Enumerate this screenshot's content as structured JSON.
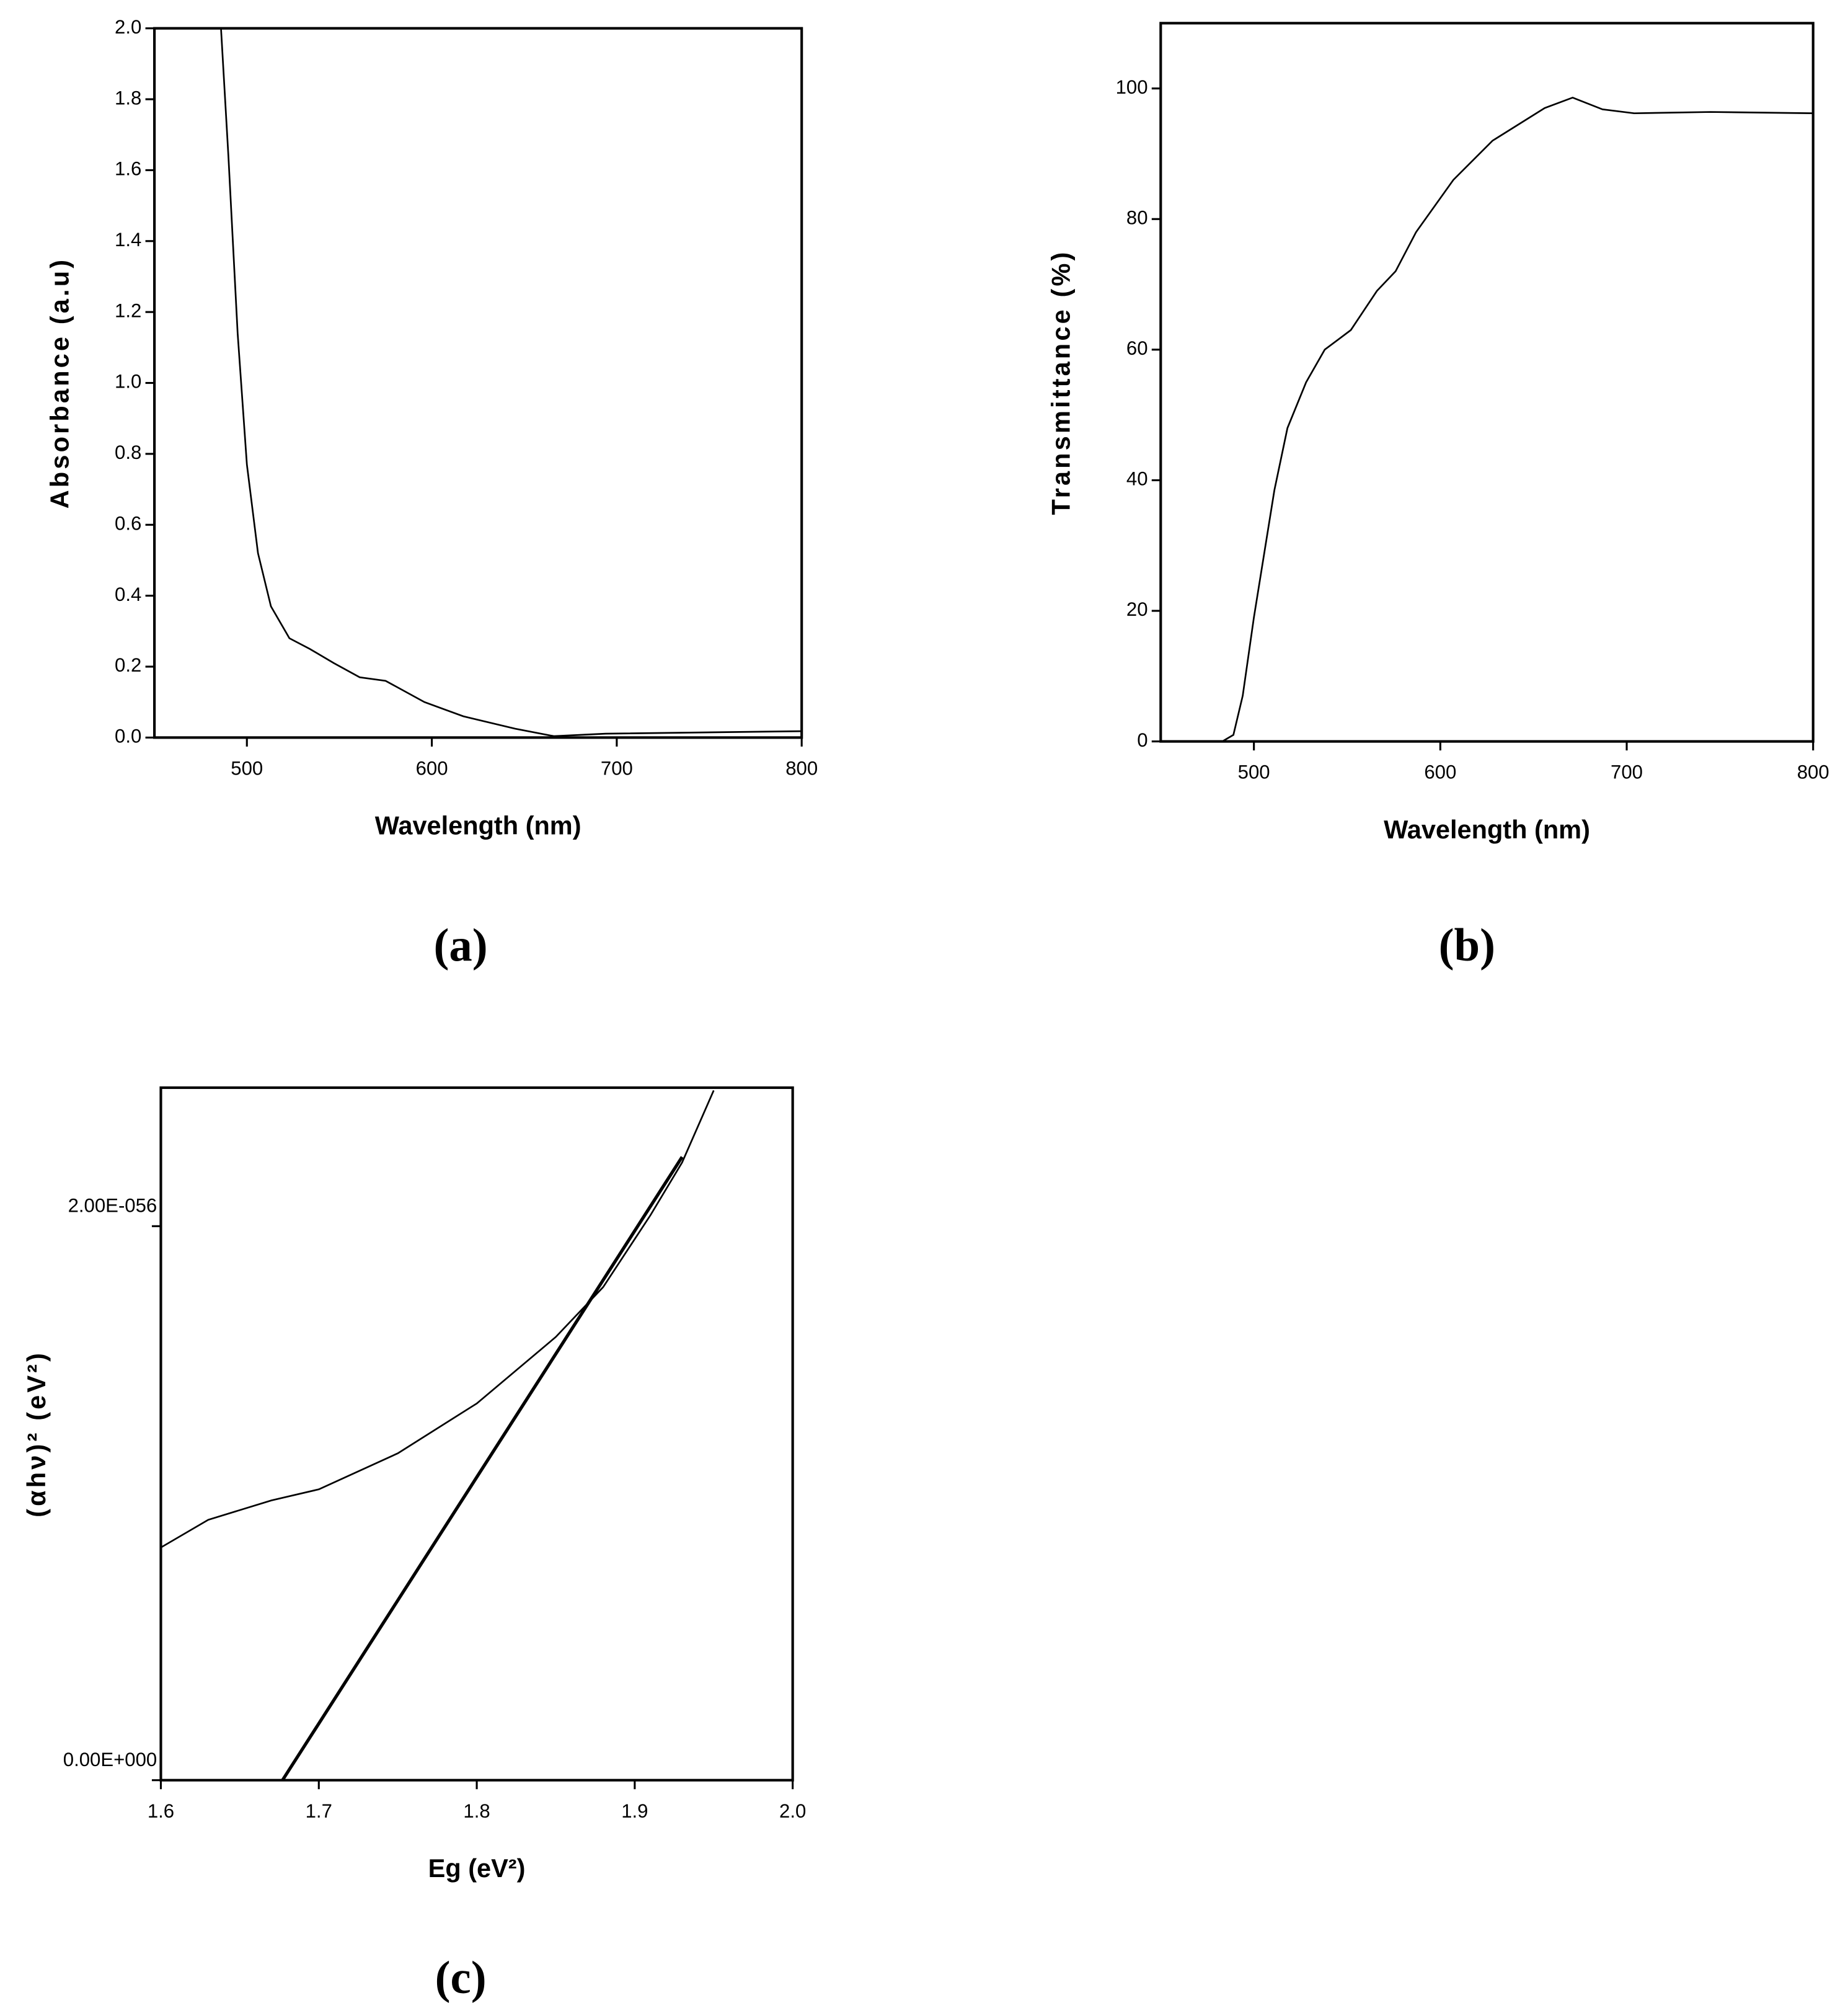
{
  "chart_data": [
    {
      "type": "line",
      "panel_label": "(a)",
      "x_label": "Wavelength (nm)",
      "y_label": "Absorbance (a.u)",
      "xlim": [
        450,
        800
      ],
      "xticks": [
        500,
        600,
        700,
        800
      ],
      "ylim": [
        0,
        2.0
      ],
      "yticks": [
        {
          "value": 0,
          "label": "0.0"
        },
        0.2,
        0.4,
        0.6,
        0.8,
        {
          "value": 1,
          "label": "1.0"
        },
        1.2,
        1.4,
        1.6,
        1.8,
        {
          "value": 2,
          "label": "2.0"
        }
      ],
      "series": [
        {
          "color": "#000000",
          "x": [
            486,
            490,
            495,
            500,
            506,
            513,
            523,
            534,
            547,
            561,
            575,
            596,
            617,
            645,
            666,
            694,
            800
          ],
          "values": [
            2.0,
            1.64,
            1.14,
            0.77,
            0.52,
            0.37,
            0.28,
            0.25,
            0.21,
            0.17,
            0.16,
            0.1,
            0.06,
            0.025,
            0.004,
            0.011,
            0.018
          ]
        }
      ]
    },
    {
      "type": "line",
      "panel_label": "(b)",
      "x_label": "Wavelength (nm)",
      "y_label": "Transmittance (%)",
      "xlim": [
        450,
        800
      ],
      "xticks": [
        500,
        600,
        700,
        800
      ],
      "ylim": [
        0,
        110
      ],
      "yticks": [
        0,
        20,
        40,
        60,
        80,
        100
      ],
      "series": [
        {
          "color": "#000000",
          "x": [
            450,
            483,
            489,
            494,
            500,
            511,
            518,
            528,
            538,
            552,
            566,
            576,
            587,
            607,
            628,
            656,
            671,
            687,
            704,
            745,
            800
          ],
          "values": [
            0,
            0,
            1,
            7,
            19,
            38.5,
            48,
            55,
            60,
            63,
            69,
            72,
            78,
            86,
            92,
            97,
            98.6,
            96.8,
            96.2,
            96.4,
            96.2
          ]
        }
      ]
    },
    {
      "type": "line",
      "panel_label": "(c)",
      "x_label": "Eg (eV²)",
      "y_label": "(αhν)² (eV²)",
      "xlim": [
        1.6,
        2.0
      ],
      "xticks": [
        1.6,
        1.7,
        1.8,
        1.9,
        {
          "value": 2,
          "label": "2.0"
        }
      ],
      "ylim": [
        0,
        2.5e-56
      ],
      "yticks": [
        {
          "value": 0,
          "label": "0.00E+000"
        },
        {
          "value": 2e-56,
          "label": "2.00E-056"
        }
      ],
      "series": [
        {
          "color": "#000000",
          "x": [
            1.6,
            1.63,
            1.67,
            1.7,
            1.75,
            1.8,
            1.85,
            1.88,
            1.91,
            1.93,
            1.95
          ],
          "values": [
            8.4e-57,
            9.4e-57,
            1.01e-56,
            1.05e-56,
            1.18e-56,
            1.36e-56,
            1.6e-56,
            1.78e-56,
            2.04e-56,
            2.23e-56,
            2.49e-56
          ]
        },
        {
          "color": "#000000",
          "x": [
            1.677,
            1.93
          ],
          "values": [
            0,
            2.25e-56
          ]
        }
      ]
    }
  ]
}
